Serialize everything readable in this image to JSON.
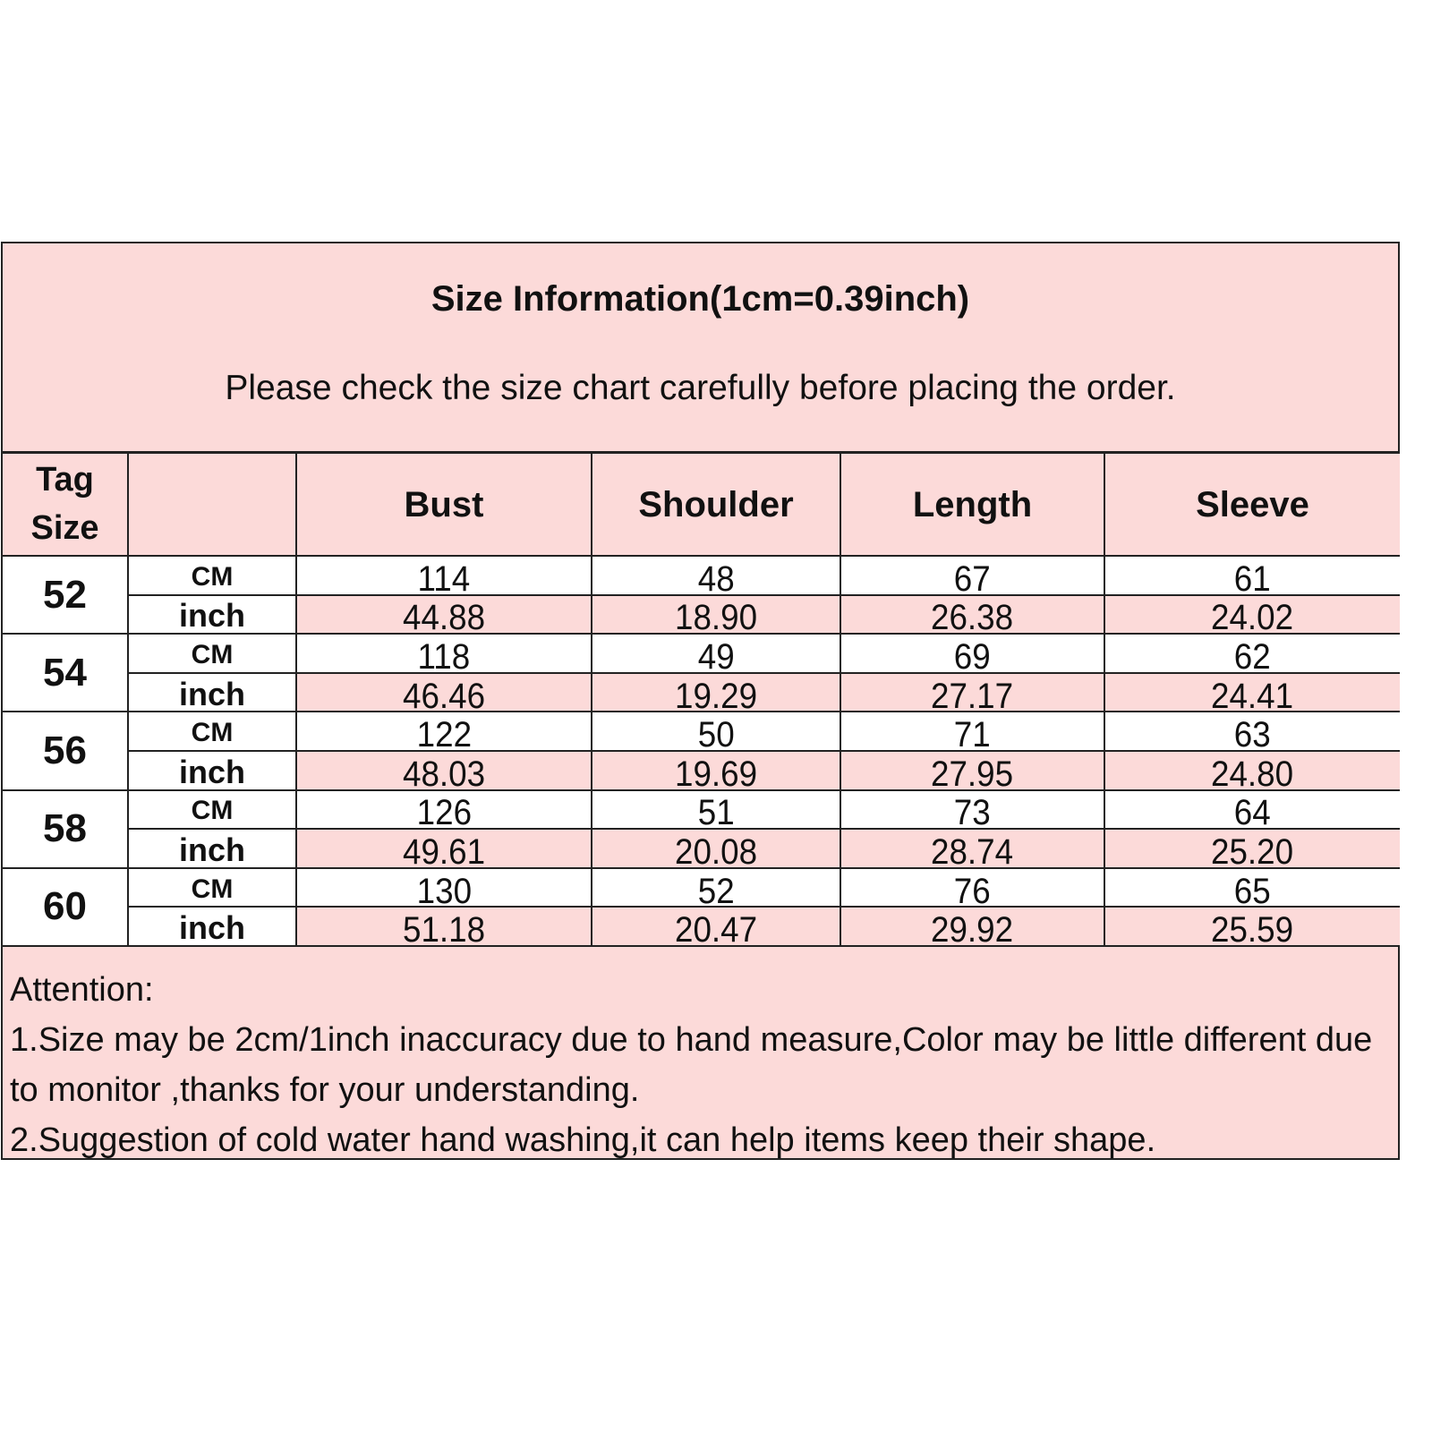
{
  "header": {
    "title": "Size Information(1cm=0.39inch)",
    "subtitle": "Please check the size chart carefully before placing the order."
  },
  "table": {
    "columns": [
      "Tag Size",
      "",
      "Bust",
      "Shoulder",
      "Length",
      "Sleeve"
    ],
    "units": [
      "CM",
      "inch"
    ],
    "rows": [
      {
        "size": "52",
        "cm": [
          "114",
          "48",
          "67",
          "61"
        ],
        "inch": [
          "44.88",
          "18.90",
          "26.38",
          "24.02"
        ]
      },
      {
        "size": "54",
        "cm": [
          "118",
          "49",
          "69",
          "62"
        ],
        "inch": [
          "46.46",
          "19.29",
          "27.17",
          "24.41"
        ]
      },
      {
        "size": "56",
        "cm": [
          "122",
          "50",
          "71",
          "63"
        ],
        "inch": [
          "48.03",
          "19.69",
          "27.95",
          "24.80"
        ]
      },
      {
        "size": "58",
        "cm": [
          "126",
          "51",
          "73",
          "64"
        ],
        "inch": [
          "49.61",
          "20.08",
          "28.74",
          "25.20"
        ]
      },
      {
        "size": "60",
        "cm": [
          "130",
          "52",
          "76",
          "65"
        ],
        "inch": [
          "51.18",
          "20.47",
          "29.92",
          "25.59"
        ]
      }
    ]
  },
  "notes": {
    "heading": "Attention:",
    "items": [
      "1.Size may be 2cm/1inch inaccuracy due to hand measure,Color may be little different due to monitor ,thanks for your understanding.",
      "2.Suggestion of cold water hand washing,it can help items keep their shape."
    ]
  },
  "colors": {
    "pink": "#fcdad9",
    "border": "#222222"
  }
}
